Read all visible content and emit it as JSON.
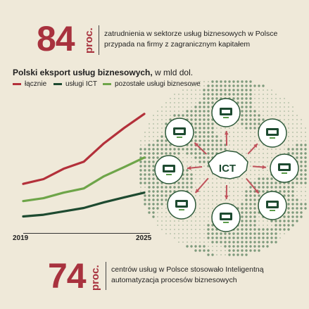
{
  "stat_top": {
    "number": "84",
    "unit": "proc.",
    "text_line1": "zatrudnienia w sektorze usług biznesowych w Polsce",
    "text_line2": "przypada na firmy z zagranicznym kapitałem"
  },
  "chart_title": {
    "bold": "Polski eksport usług biznesowych,",
    "normal": " w mld dol."
  },
  "colors": {
    "accent": "#a8323e",
    "total": "#b3303a",
    "ict": "#1d4a30",
    "other": "#6ea549",
    "globe": "#7d9a7c",
    "icon_ring": "#2e5a3a"
  },
  "chart_data": {
    "type": "line",
    "x": [
      2019,
      2020,
      2021,
      2022,
      2023,
      2024,
      2025
    ],
    "xlabels": [
      "2019",
      "2025"
    ],
    "series": [
      {
        "name": "łącznie",
        "values": [
          24.5,
          27.3,
          33.4,
          37.6,
          48.5,
          57.6,
          65.9
        ]
      },
      {
        "name": "usługi ICT",
        "values": [
          5.2,
          6.2,
          8.2,
          10.2,
          13.6,
          16.5,
          19.3
        ]
      },
      {
        "name": "pozostałe usługi biznesowe",
        "values": [
          14.3,
          16.0,
          19.3,
          21.8,
          29.0,
          34.4,
          40.1
        ]
      }
    ],
    "ylim": [
      0,
      75
    ]
  },
  "diagram": {
    "center_label": "ICT",
    "icons": [
      "data-processing-icon",
      "computer-icon",
      "router-icon",
      "cloud-network-icon",
      "global-network-icon",
      "chip-icon",
      "server-icon",
      "chat-icon",
      "tower-icon"
    ]
  },
  "stat_bottom": {
    "number": "74",
    "unit": "proc.",
    "text_line1": "centrów usług w Polsce stosowało Inteligentną",
    "text_line2": "automatyzacja procesów biznesowych"
  }
}
